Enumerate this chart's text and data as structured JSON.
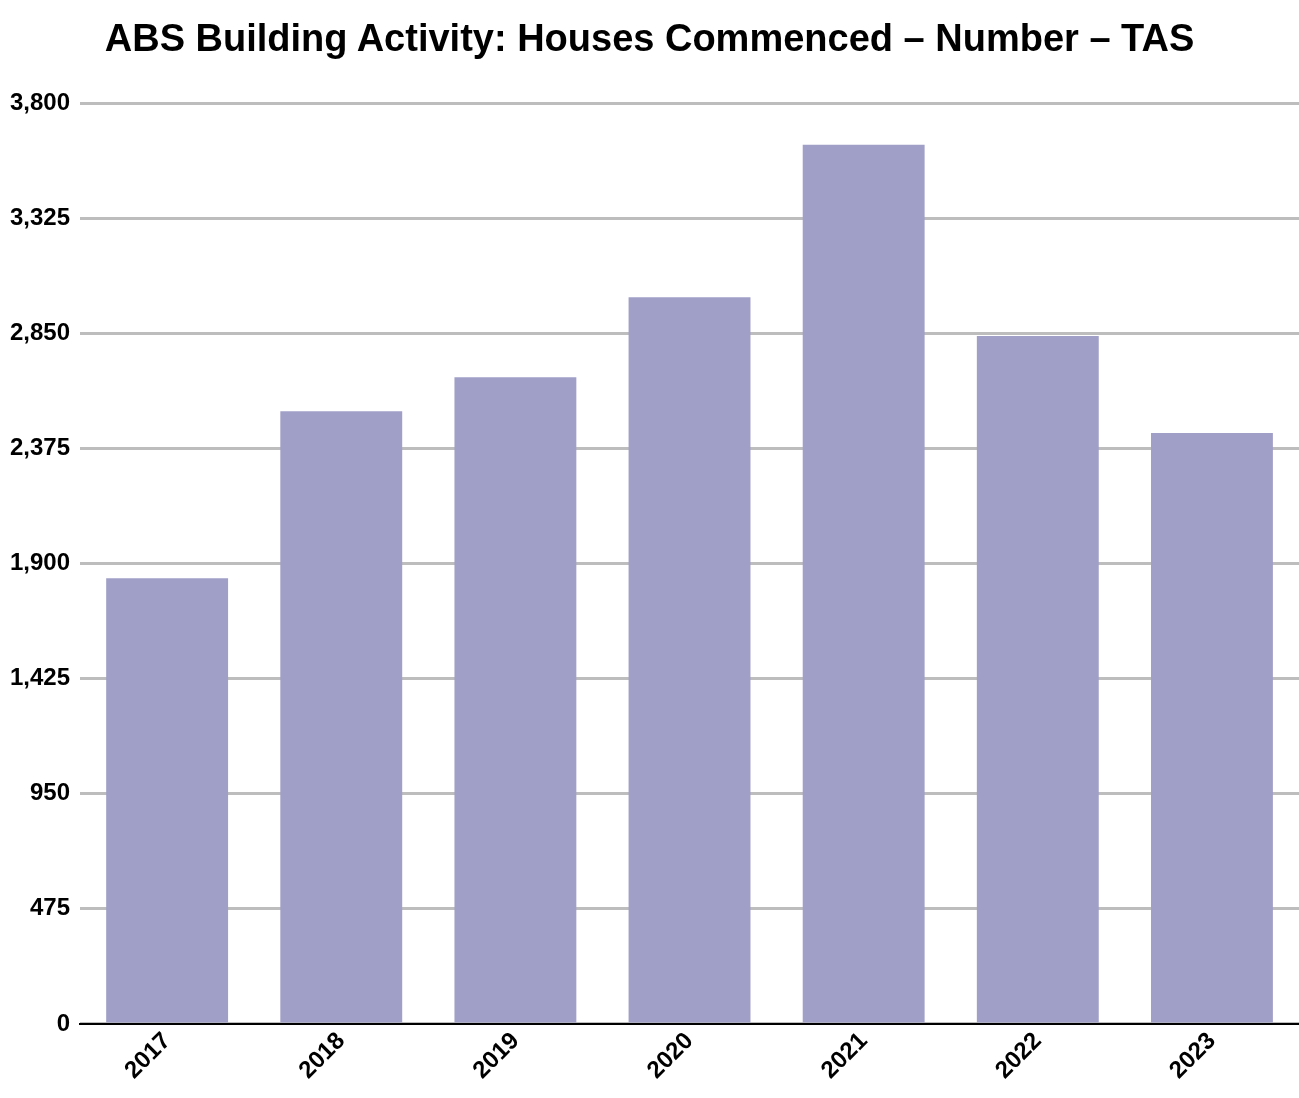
{
  "chart_data": {
    "type": "bar",
    "title": "ABS Building Activity: Houses Commenced – Number – TAS",
    "categories": [
      "2017",
      "2018",
      "2019",
      "2020",
      "2021",
      "2022",
      "2023"
    ],
    "values": [
      1840,
      2530,
      2670,
      3000,
      3630,
      2840,
      2440
    ],
    "color": "#a09fc7",
    "ylim": [
      0,
      3800
    ],
    "yticks": [
      0,
      475,
      950,
      {
        "value": 1425,
        "label": "1,425"
      },
      {
        "value": 1900,
        "label": "1,900"
      },
      {
        "value": 2375,
        "label": "2,375"
      },
      {
        "value": 2850,
        "label": "2,850"
      },
      {
        "value": 3325,
        "label": "3,325"
      },
      {
        "value": 3800,
        "label": "3,800"
      }
    ],
    "grid": "y",
    "legend": false
  }
}
